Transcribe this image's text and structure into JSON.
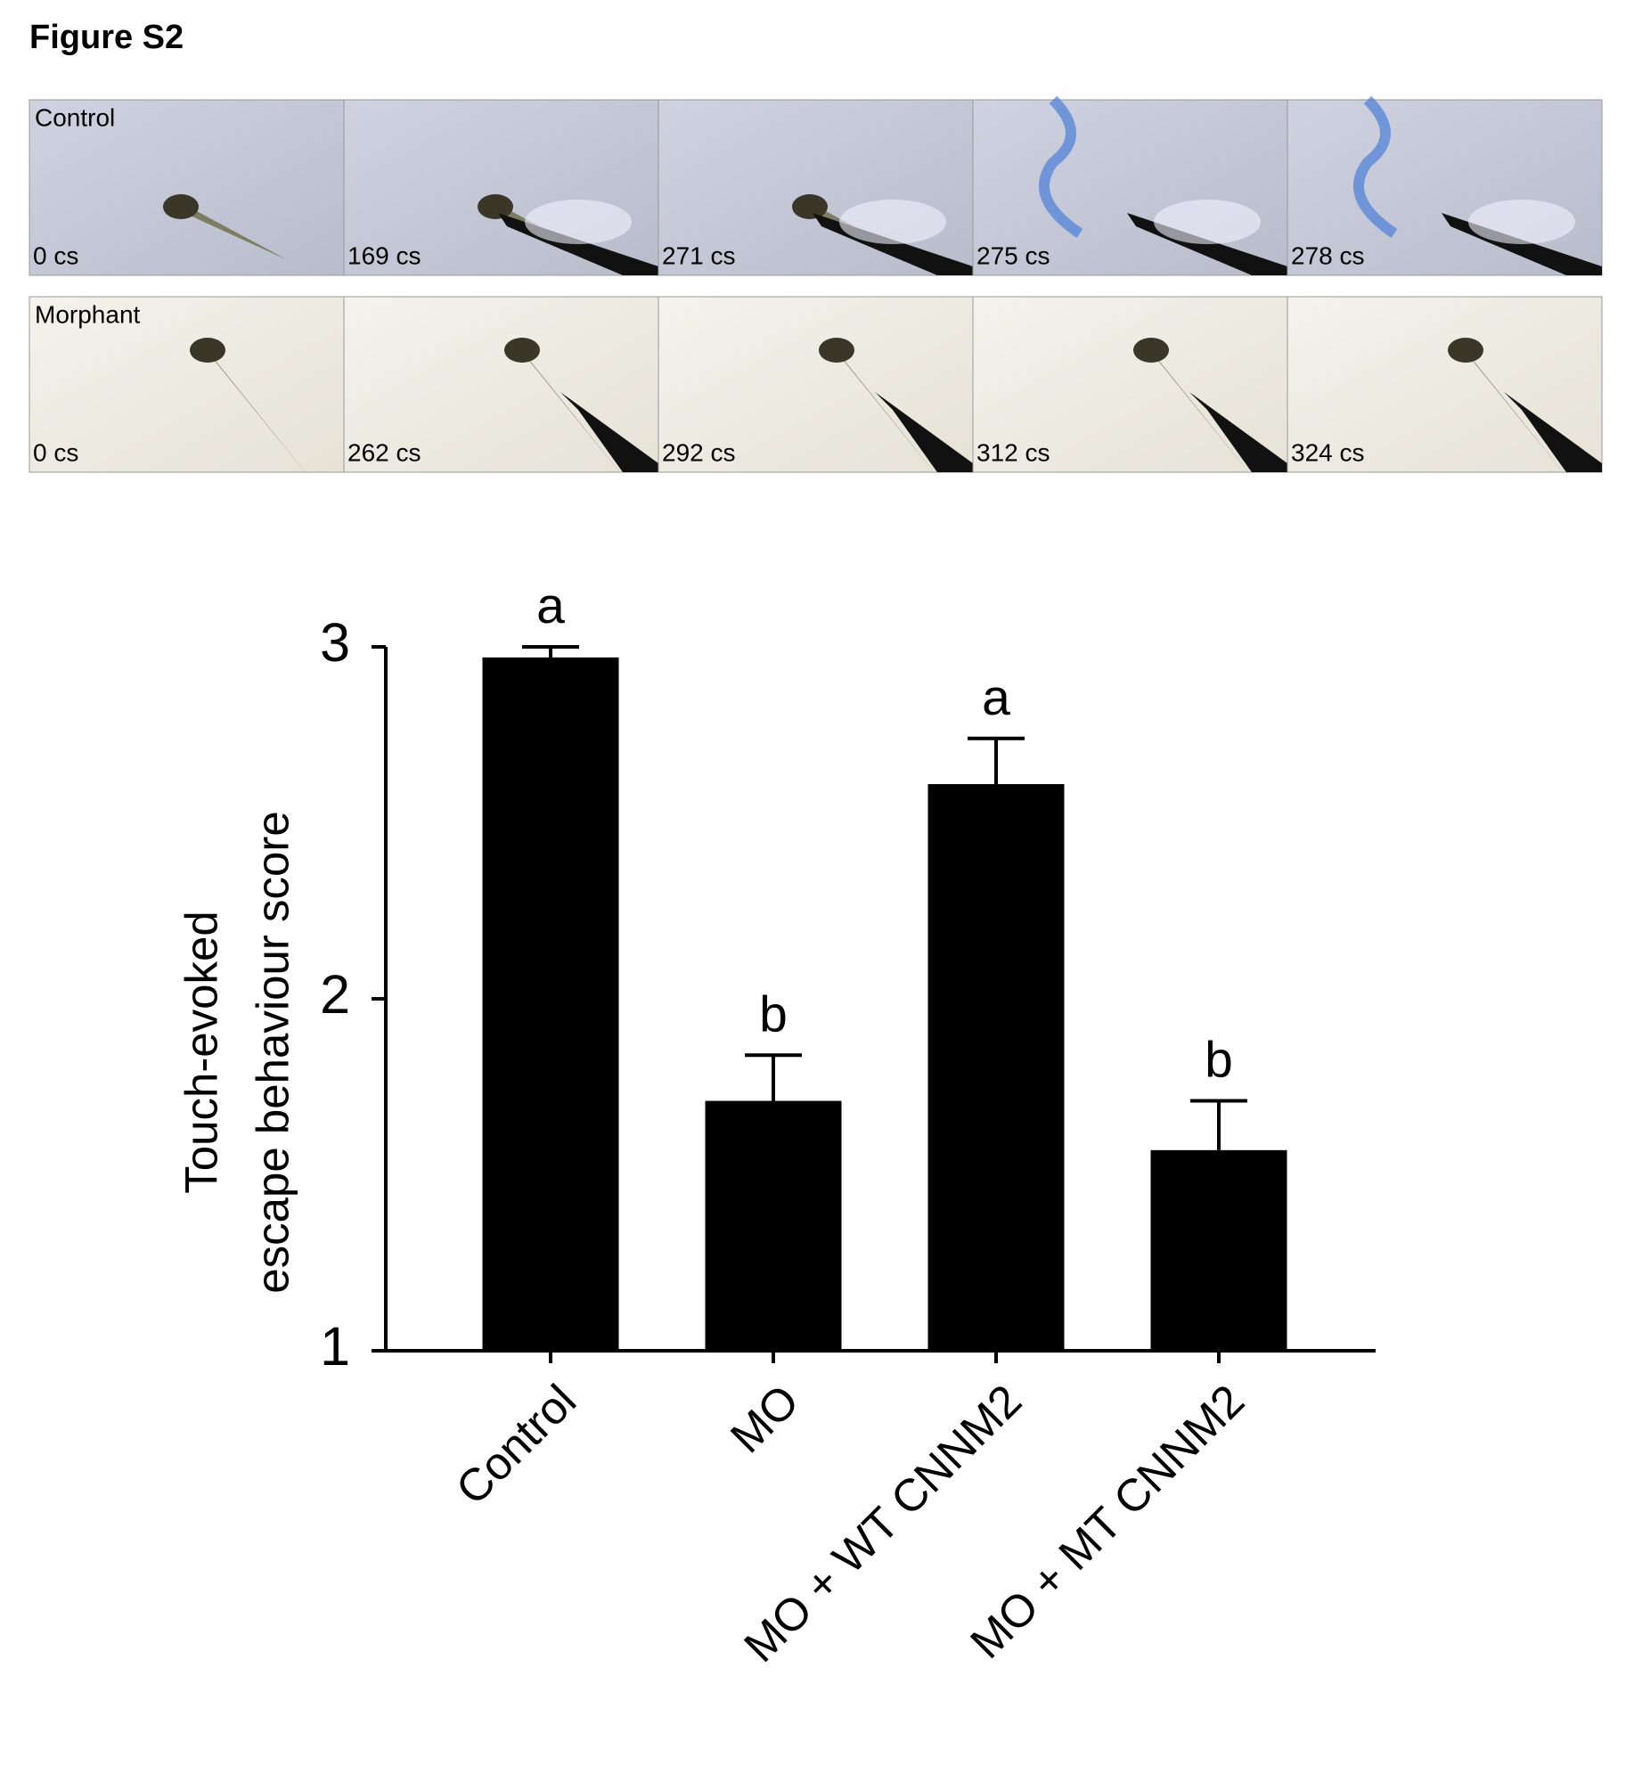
{
  "figure_title": "Figure S2",
  "panels": [
    {
      "label": "Control",
      "times": [
        "0 cs",
        "169 cs",
        "271 cs",
        "275 cs",
        "278 cs"
      ]
    },
    {
      "label": "Morphant",
      "times": [
        "0 cs",
        "262 cs",
        "292 cs",
        "312 cs",
        "324 cs"
      ]
    }
  ],
  "chart_data": {
    "type": "bar",
    "ylabel": [
      "Touch-evoked",
      "escape behaviour score"
    ],
    "categories": [
      "Control",
      "MO",
      "MO + WT CNNM2",
      "MO + MT CNNM2"
    ],
    "values": [
      2.97,
      1.71,
      2.61,
      1.57
    ],
    "errors": [
      0.03,
      0.13,
      0.13,
      0.14
    ],
    "annotations": [
      "a",
      "b",
      "a",
      "b"
    ],
    "color": "#000000",
    "ylim": [
      1,
      3
    ],
    "yticks": [
      1,
      2,
      3
    ],
    "grid": false
  }
}
